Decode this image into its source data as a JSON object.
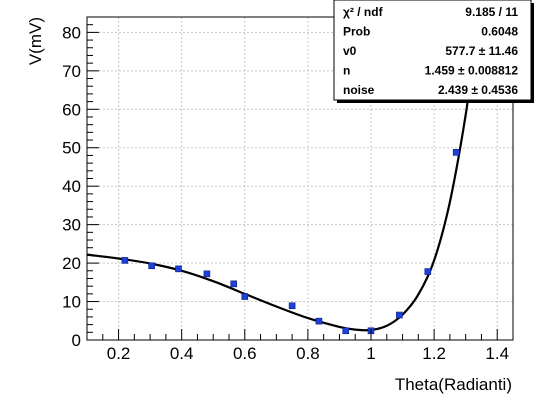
{
  "chart_data": {
    "type": "scatter",
    "xlabel": "Theta(Radianti)",
    "ylabel": "V(mV)",
    "xlim": [
      0.1,
      1.45
    ],
    "ylim": [
      0,
      84
    ],
    "xticks": [
      0.2,
      0.4,
      0.6,
      0.8,
      1,
      1.2,
      1.4
    ],
    "xtick_labels": [
      "0.2",
      "0.4",
      "0.6",
      "0.8",
      "1",
      "1.2",
      "1.4"
    ],
    "yticks": [
      0,
      10,
      20,
      30,
      40,
      50,
      60,
      70,
      80
    ],
    "ytick_labels": [
      "0",
      "10",
      "20",
      "30",
      "40",
      "50",
      "60",
      "70",
      "80"
    ],
    "grid": true,
    "marker_color": "#1f3fd6",
    "fit_color": "#000000",
    "points": [
      {
        "x": 0.22,
        "y": 20.7
      },
      {
        "x": 0.305,
        "y": 19.3
      },
      {
        "x": 0.39,
        "y": 18.5
      },
      {
        "x": 0.48,
        "y": 17.2
      },
      {
        "x": 0.565,
        "y": 14.6
      },
      {
        "x": 0.6,
        "y": 11.3
      },
      {
        "x": 0.75,
        "y": 8.9
      },
      {
        "x": 0.835,
        "y": 4.9
      },
      {
        "x": 0.92,
        "y": 2.4
      },
      {
        "x": 1.0,
        "y": 2.4
      },
      {
        "x": 1.09,
        "y": 6.5
      },
      {
        "x": 1.18,
        "y": 17.8
      },
      {
        "x": 1.27,
        "y": 48.8
      }
    ],
    "fit_curve": [
      {
        "x": 0.1,
        "y": 22.2
      },
      {
        "x": 0.2,
        "y": 21.2
      },
      {
        "x": 0.3,
        "y": 19.9
      },
      {
        "x": 0.4,
        "y": 18.0
      },
      {
        "x": 0.5,
        "y": 15.3
      },
      {
        "x": 0.6,
        "y": 12.0
      },
      {
        "x": 0.7,
        "y": 8.7
      },
      {
        "x": 0.8,
        "y": 5.7
      },
      {
        "x": 0.9,
        "y": 3.4
      },
      {
        "x": 0.95,
        "y": 2.7
      },
      {
        "x": 1.0,
        "y": 2.6
      },
      {
        "x": 1.05,
        "y": 3.7
      },
      {
        "x": 1.1,
        "y": 6.6
      },
      {
        "x": 1.15,
        "y": 11.8
      },
      {
        "x": 1.2,
        "y": 20.7
      },
      {
        "x": 1.25,
        "y": 35.9
      },
      {
        "x": 1.3,
        "y": 58.6
      },
      {
        "x": 1.33,
        "y": 77.0
      },
      {
        "x": 1.345,
        "y": 84.0
      }
    ]
  },
  "stats_box": [
    {
      "label": "χ² / ndf",
      "value": "9.185 / 11"
    },
    {
      "label": "Prob",
      "value": "0.6048"
    },
    {
      "label": "v0",
      "value": "577.7 ± 11.46"
    },
    {
      "label": "n",
      "value": "1.459 ± 0.008812"
    },
    {
      "label": "noise",
      "value": "2.439 ± 0.4536"
    }
  ]
}
